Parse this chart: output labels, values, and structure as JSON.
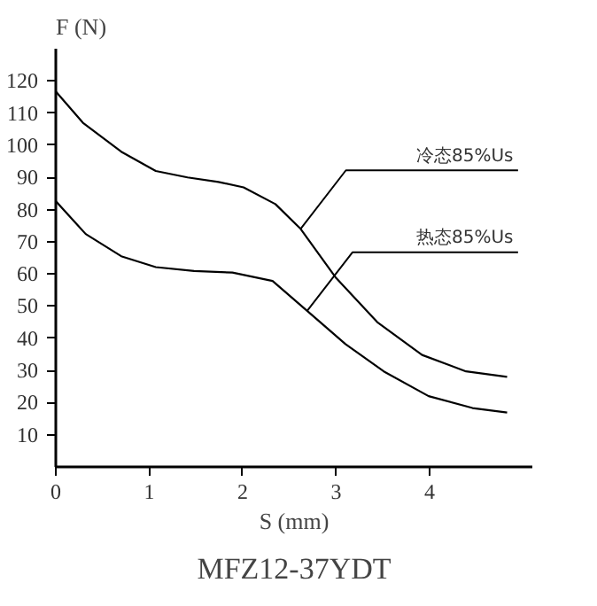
{
  "chart_data": {
    "type": "line",
    "title": "MFZ12-37YDT",
    "xlabel": "S (mm)",
    "ylabel": "F (N)",
    "series": [
      {
        "color": "#000000",
        "x": [
          0,
          0.29,
          0.7,
          1.07,
          1.41,
          1.74,
          2.01,
          2.35,
          2.62,
          3.0,
          3.44,
          3.92,
          4.39,
          4.83
        ],
        "values": [
          116.7,
          107,
          98,
          92,
          90,
          88.6,
          86.9,
          81.7,
          74,
          58.7,
          45,
          34.8,
          29.7,
          28
        ]
      },
      {
        "color": "#000000",
        "x": [
          0,
          0.32,
          0.7,
          1.07,
          1.48,
          1.89,
          2.32,
          2.69,
          3.1,
          3.51,
          3.99,
          4.46,
          4.83
        ],
        "values": [
          82.6,
          72.4,
          65.5,
          62.1,
          60.9,
          60.4,
          57.8,
          48.5,
          38.2,
          29.7,
          22,
          18.3,
          16.9
        ]
      }
    ],
    "annotations": [
      {
        "text": "冷态85%Us",
        "x": 2.62,
        "y": 74
      },
      {
        "text": "热态85%Us",
        "x": 2.69,
        "y": 48.5
      }
    ],
    "xlim": [
      0,
      5.1
    ],
    "ylim": [
      0,
      130
    ],
    "xticks": [
      0,
      1,
      2,
      3,
      4
    ],
    "yticks": [
      10,
      20,
      30,
      40,
      50,
      60,
      70,
      80,
      90,
      100,
      110,
      120
    ],
    "grid": false,
    "marker": "none",
    "line_style": "solid"
  }
}
